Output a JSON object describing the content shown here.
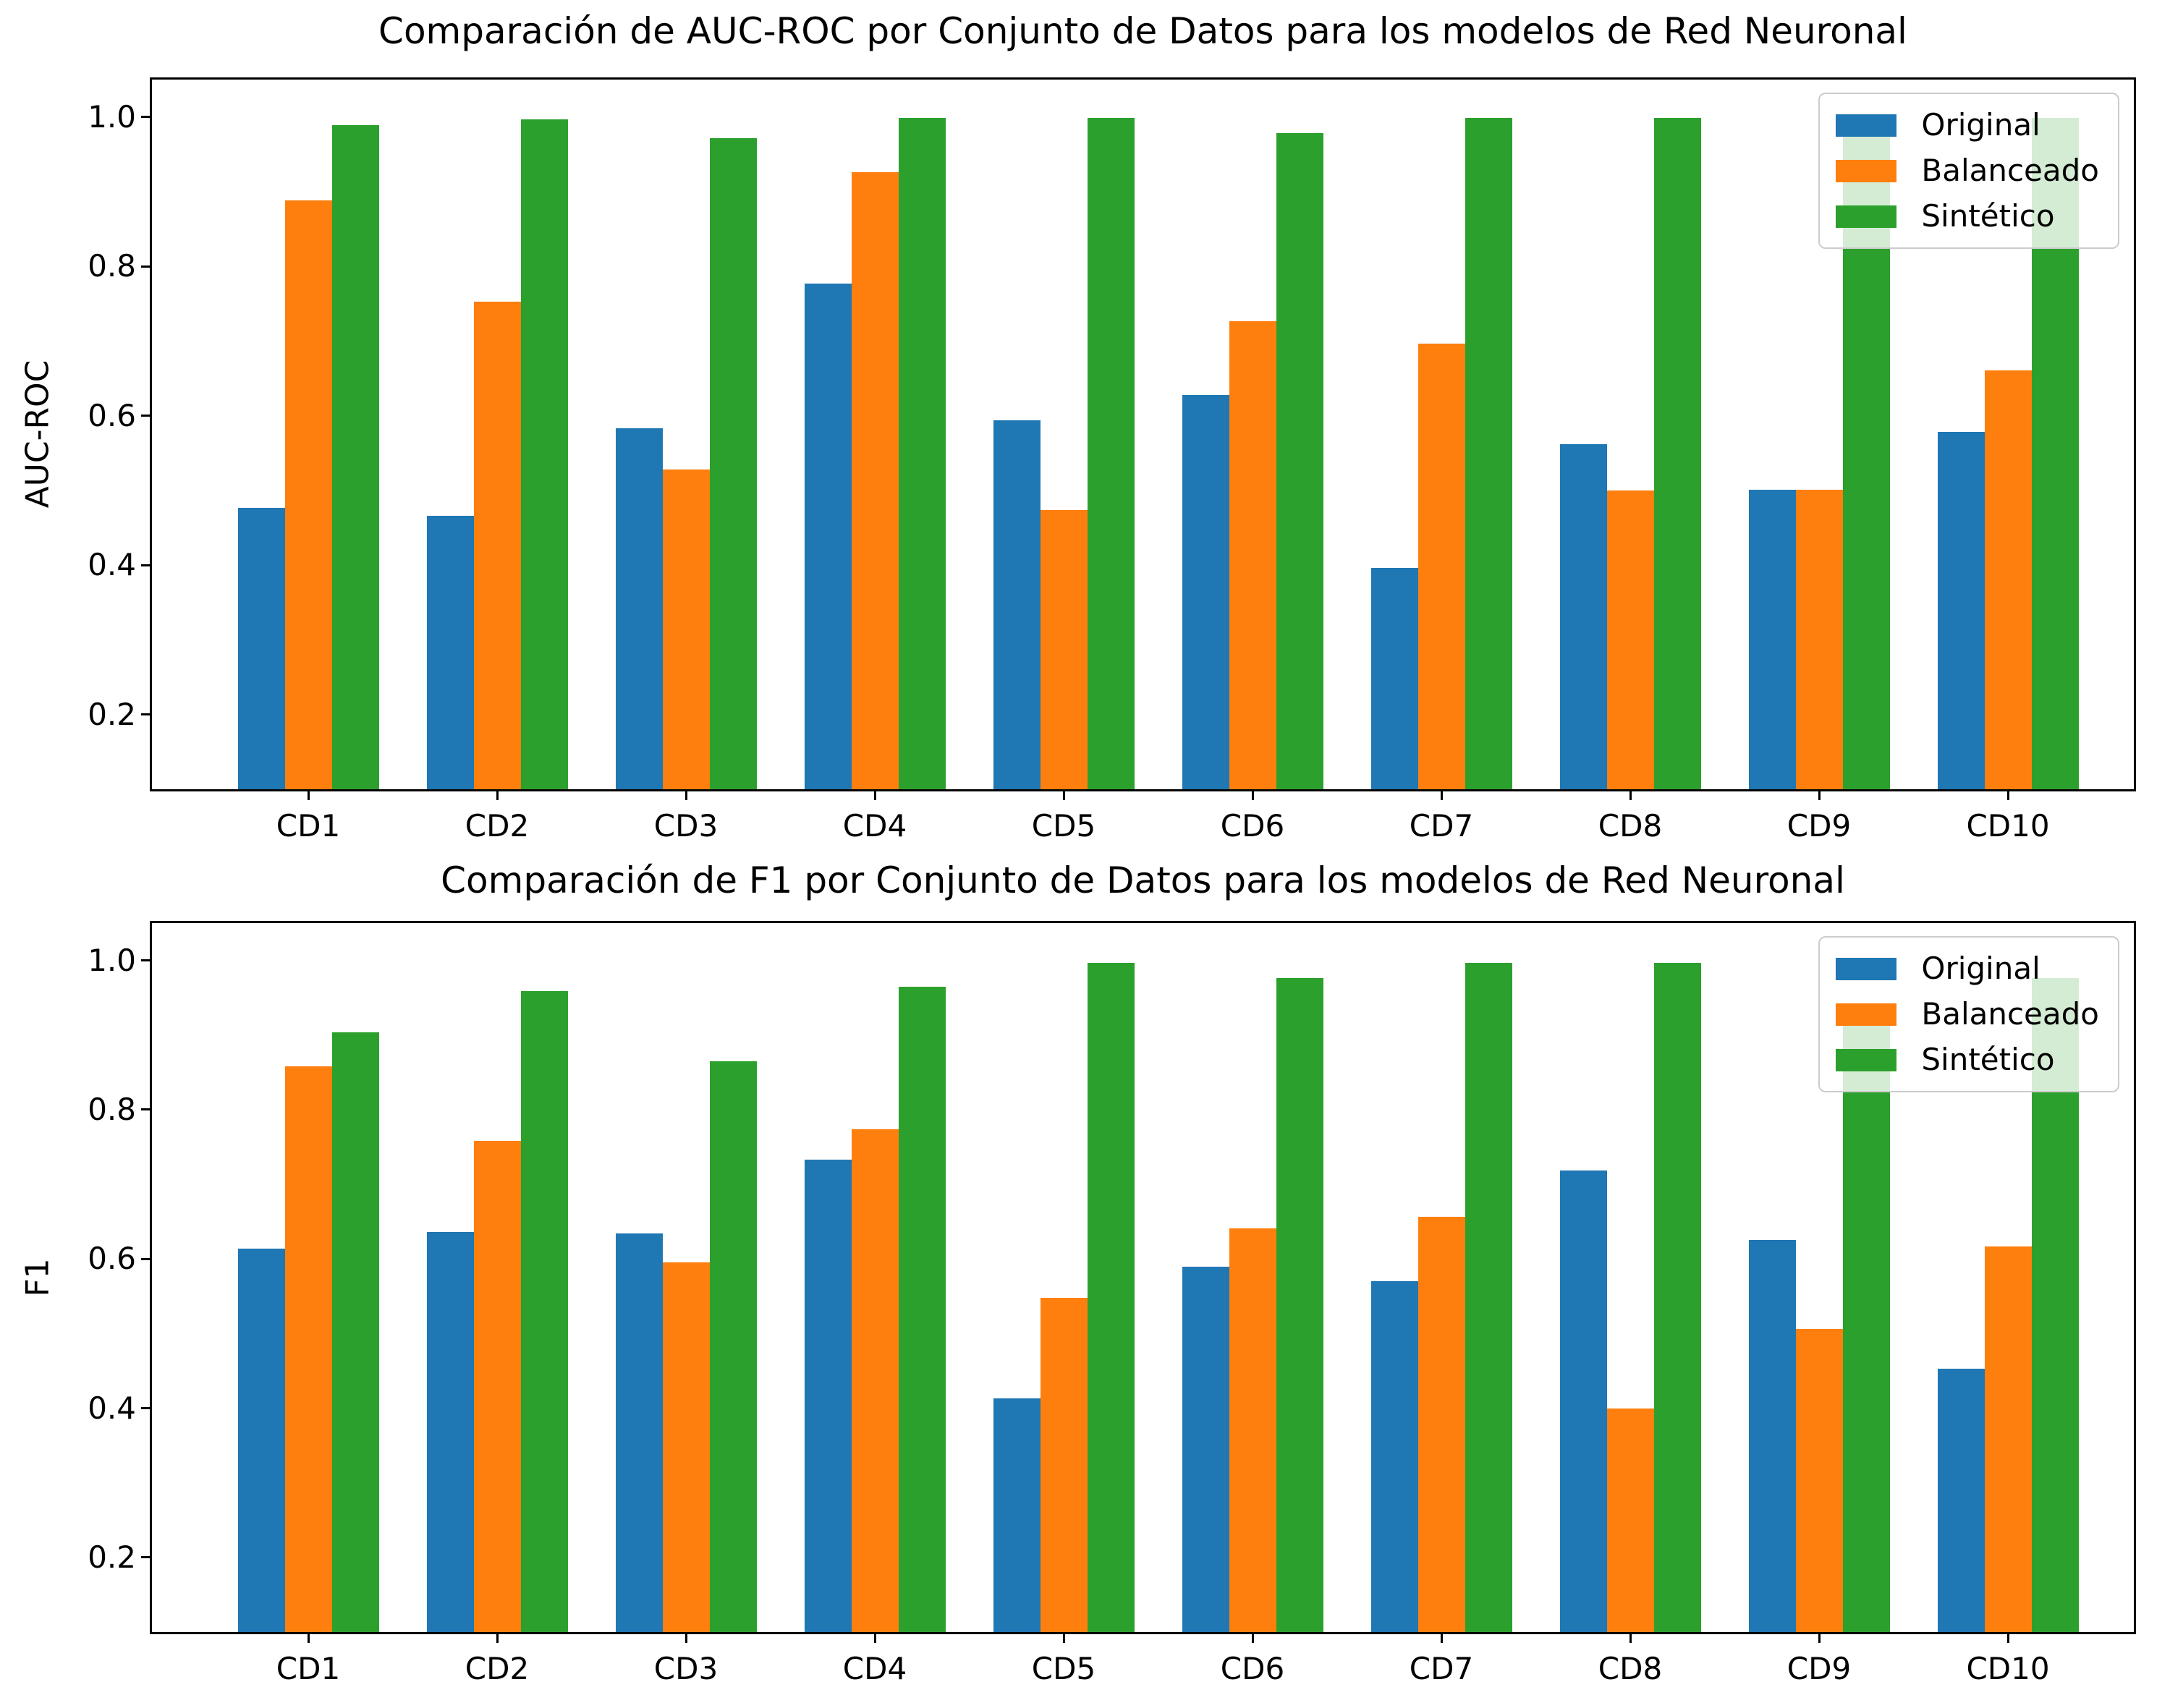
{
  "figure": {
    "background": "#ffffff",
    "text_color": "#000000"
  },
  "chart_data": [
    {
      "type": "bar",
      "title": "Comparación de AUC-ROC por Conjunto de Datos para los modelos de Red Neuronal",
      "xlabel": "",
      "ylabel": "AUC-ROC",
      "categories": [
        "CD1",
        "CD2",
        "CD3",
        "CD4",
        "CD5",
        "CD6",
        "CD7",
        "CD8",
        "CD9",
        "CD10"
      ],
      "series": [
        {
          "name": "Original",
          "color": "#1f77b4",
          "values": [
            0.477,
            0.466,
            0.583,
            0.777,
            0.594,
            0.628,
            0.396,
            0.562,
            0.501,
            0.578
          ]
        },
        {
          "name": "Balanceado",
          "color": "#ff7f0e",
          "values": [
            0.888,
            0.753,
            0.528,
            0.926,
            0.474,
            0.727,
            0.697,
            0.5,
            0.501,
            0.661
          ]
        },
        {
          "name": "Sintético",
          "color": "#2ca02c",
          "values": [
            0.989,
            0.997,
            0.972,
            0.999,
            0.999,
            0.978,
            0.999,
            0.999,
            0.999,
            0.999
          ]
        }
      ],
      "ylim": [
        0.1,
        1.05
      ],
      "yticks": [
        "0.2",
        "0.4",
        "0.6",
        "0.8",
        "1.0"
      ],
      "grid": false,
      "legend_position": "upper right"
    },
    {
      "type": "bar",
      "title": "Comparación de F1 por Conjunto de Datos para los modelos de Red Neuronal",
      "xlabel": "",
      "ylabel": "F1",
      "categories": [
        "CD1",
        "CD2",
        "CD3",
        "CD4",
        "CD5",
        "CD6",
        "CD7",
        "CD8",
        "CD9",
        "CD10"
      ],
      "series": [
        {
          "name": "Original",
          "color": "#1f77b4",
          "values": [
            0.614,
            0.636,
            0.634,
            0.733,
            0.413,
            0.59,
            0.57,
            0.718,
            0.625,
            0.453
          ]
        },
        {
          "name": "Balanceado",
          "color": "#ff7f0e",
          "values": [
            0.858,
            0.758,
            0.595,
            0.774,
            0.548,
            0.641,
            0.656,
            0.4,
            0.506,
            0.617
          ]
        },
        {
          "name": "Sintético",
          "color": "#2ca02c",
          "values": [
            0.904,
            0.959,
            0.865,
            0.965,
            0.997,
            0.976,
            0.997,
            0.997,
            0.941,
            0.976
          ]
        }
      ],
      "ylim": [
        0.1,
        1.05
      ],
      "yticks": [
        "0.2",
        "0.4",
        "0.6",
        "0.8",
        "1.0"
      ],
      "grid": false,
      "legend_position": "upper right"
    }
  ]
}
